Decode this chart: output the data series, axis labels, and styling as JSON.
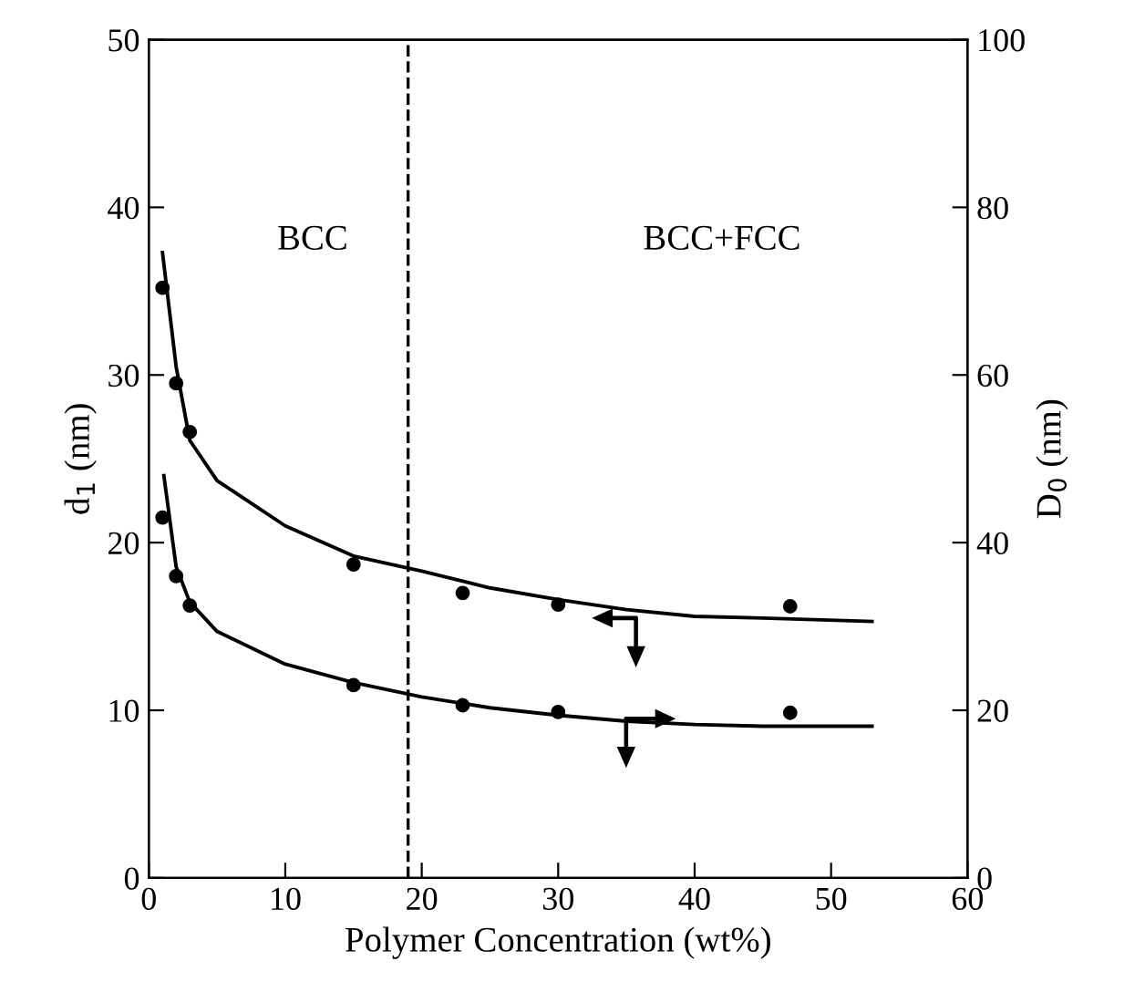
{
  "chart_data": {
    "type": "scatter",
    "xlabel": "Polymer Concentration (wt%)",
    "ylabel": "d$_{1}$ (nm)",
    "y2label": "D$_{0}$ (nm)",
    "xlim": [
      0,
      60
    ],
    "xticks": [
      0,
      10,
      20,
      30,
      40,
      50,
      60
    ],
    "ylim": [
      0,
      50
    ],
    "yticks": [
      0,
      10,
      20,
      30,
      40,
      50
    ],
    "y2lim": [
      0,
      100
    ],
    "y2ticks": [
      0,
      20,
      40,
      60,
      80,
      100
    ],
    "grid": false,
    "series": [
      {
        "axis": "y",
        "marker": "circle",
        "color": "#000000",
        "x": [
          1,
          2,
          3,
          15,
          23,
          30,
          47
        ],
        "values": [
          35.2,
          29.5,
          26.6,
          18.7,
          17.0,
          16.3,
          16.2
        ]
      },
      {
        "axis": "y2",
        "marker": "circle",
        "color": "#000000",
        "x": [
          1,
          2,
          3,
          15,
          23,
          30,
          47
        ],
        "values": [
          43.0,
          36.0,
          32.5,
          23.0,
          20.6,
          19.8,
          19.7
        ]
      },
      {
        "type": "line",
        "axis": "y",
        "color": "#000000",
        "x": [
          1,
          2,
          3,
          5,
          10,
          15,
          20,
          25,
          30,
          35,
          40,
          45,
          53
        ],
        "values": [
          37.3,
          30.5,
          26.1,
          23.7,
          21.0,
          19.2,
          18.3,
          17.3,
          16.6,
          16.0,
          15.6,
          15.5,
          15.3
        ]
      },
      {
        "type": "line",
        "axis": "y2",
        "color": "#000000",
        "x": [
          1.1,
          2,
          3,
          5,
          10,
          15,
          20,
          25,
          30,
          35,
          40,
          45,
          53
        ],
        "values": [
          48.0,
          37.1,
          32.9,
          29.4,
          25.5,
          23.3,
          21.6,
          20.3,
          19.4,
          18.7,
          18.3,
          18.1,
          18.1
        ]
      }
    ],
    "ref_lines": [
      {
        "axis": "x",
        "value": 19,
        "line_style": "dashed",
        "color": "#000000"
      }
    ],
    "annotations": [
      "BCC",
      "BCC+FCC"
    ]
  }
}
